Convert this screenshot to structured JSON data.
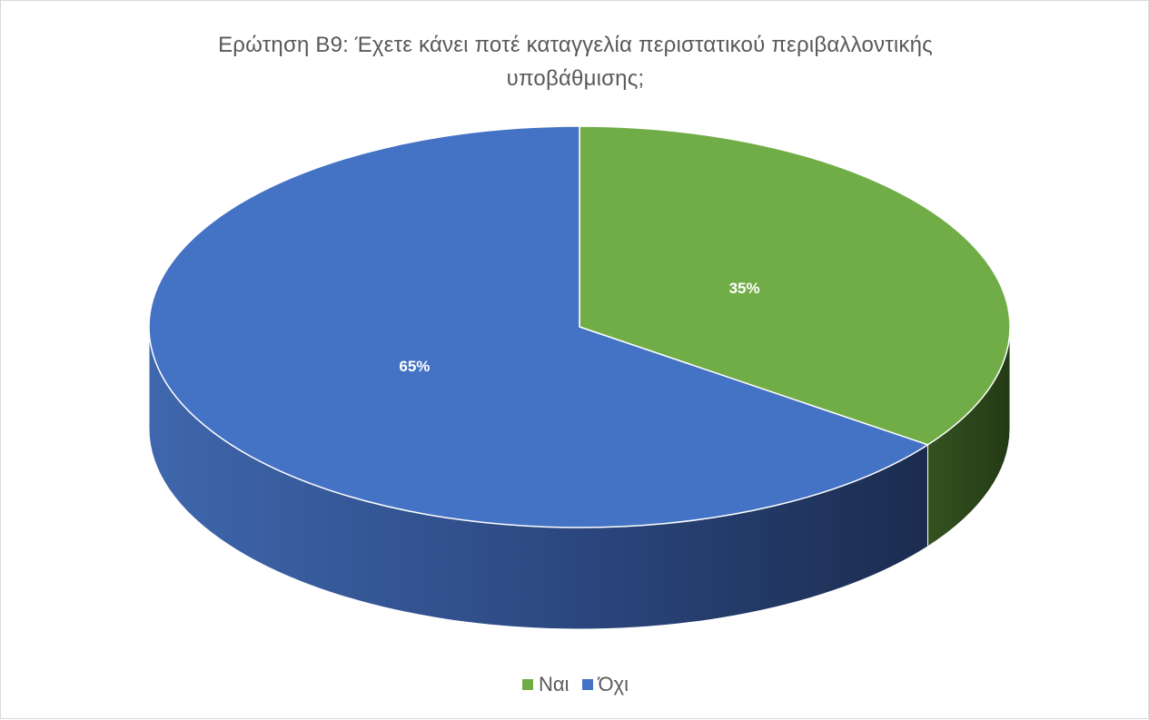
{
  "chart_data": {
    "type": "pie",
    "title_lines": [
      "Ερώτηση Β9: Έχετε κάνει ποτέ καταγγελία περιστατικού περιβαλλοντικής",
      "υποβάθμισης;"
    ],
    "categories": [
      "Ναι",
      "Όχι"
    ],
    "values": [
      35,
      65
    ],
    "labels": [
      "35%",
      "65%"
    ],
    "colors": [
      "#70ad47",
      "#4472c4"
    ],
    "side_colors": [
      "#2b431a",
      "#2e4a82"
    ],
    "legend_position": "bottom"
  }
}
